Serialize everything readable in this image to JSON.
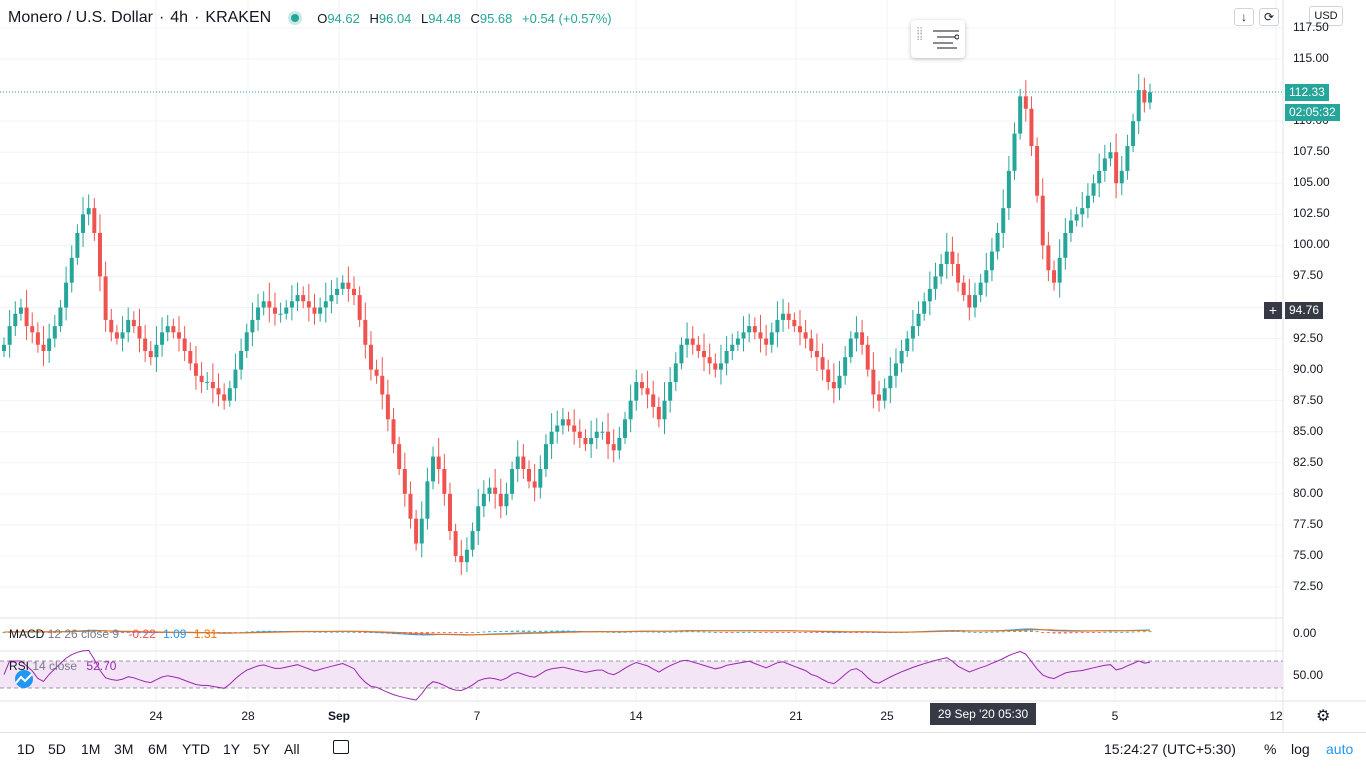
{
  "legend": {
    "symbol": "Monero / U.S. Dollar",
    "interval": "4h",
    "exchange": "KRAKEN",
    "o_label": "O",
    "o": "94.62",
    "h_label": "H",
    "h": "96.04",
    "l_label": "L",
    "l": "94.48",
    "c_label": "C",
    "c": "95.68",
    "change": "+0.54 (+0.57%)",
    "up_color": "#26a69a",
    "down_color": "#ef5350"
  },
  "toolbar": {
    "down_arrow_icon": "down-arrow-icon",
    "fullscreen_icon": "fullscreen-icon",
    "currency": "USD",
    "settings_icon": "gear-icon"
  },
  "price_axis": {
    "labels": [
      "117.50",
      "115.00",
      "110.00",
      "107.50",
      "105.00",
      "102.50",
      "100.00",
      "97.50",
      "95.00",
      "92.50",
      "90.00",
      "87.50",
      "85.00",
      "82.50",
      "80.00",
      "77.50",
      "75.00",
      "72.50"
    ],
    "last_price": "112.33",
    "countdown": "02:05:32",
    "crosshair_price": "94.76",
    "last_price_color": "#26a69a"
  },
  "time_axis": {
    "labels": [
      "24",
      "28",
      "Sep",
      "7",
      "14",
      "21",
      "25",
      "5",
      "12"
    ],
    "crosshair_date": "29 Sep '20  05:30"
  },
  "macd": {
    "name": "MACD",
    "params": "12 26 close 9",
    "v1": "-0.22",
    "v2": "1.09",
    "v3": "1.31",
    "axis_label": "0.00",
    "macd_color": "#2196f3",
    "signal_color": "#ff6d00"
  },
  "rsi": {
    "name": "RSI",
    "params": "14 close",
    "value": "52.70",
    "axis_label": "50.00",
    "line_color": "#9c27b0",
    "band_color": "#f3e5f5"
  },
  "bottom": {
    "ranges": [
      "1D",
      "5D",
      "1M",
      "3M",
      "6M",
      "YTD",
      "1Y",
      "5Y",
      "All"
    ],
    "compare_icon": "calendar-range-icon",
    "clock": "15:24:27 (UTC+5:30)",
    "percent": "%",
    "log": "log",
    "auto": "auto"
  },
  "chart_data": {
    "type": "candlestick",
    "title": "Monero / U.S. Dollar · 4h · KRAKEN",
    "ylim": [
      70,
      118
    ],
    "x_labels": [
      "24",
      "28",
      "Sep",
      "7",
      "14",
      "21",
      "25",
      "5",
      "12"
    ],
    "closes": [
      92,
      93.5,
      94.5,
      95,
      93.5,
      93,
      92,
      91.5,
      92.5,
      93.5,
      95,
      97,
      99,
      101,
      102.5,
      103,
      101,
      97.5,
      94,
      93,
      92.5,
      93,
      94,
      93.5,
      92.5,
      91.5,
      91,
      92,
      93,
      93.5,
      93,
      92.5,
      91.5,
      90.5,
      89.5,
      89,
      89,
      88.5,
      88,
      87.5,
      88.5,
      90,
      91.5,
      93,
      94,
      95,
      95.5,
      95,
      94.5,
      94.5,
      95,
      95.5,
      96,
      95.5,
      95,
      94.5,
      95,
      95.5,
      96,
      96.5,
      97,
      96.5,
      96,
      94,
      92,
      90,
      89.5,
      88,
      86,
      84,
      82,
      80,
      78,
      76,
      78,
      81,
      83,
      82,
      80,
      77,
      75,
      74.5,
      75.5,
      77,
      79,
      80,
      80.5,
      80,
      79,
      80,
      82,
      83,
      82,
      81,
      80.5,
      82,
      84,
      85,
      85.5,
      86,
      85.5,
      85,
      84.5,
      84,
      84.5,
      85,
      85,
      84,
      83.5,
      84.5,
      86,
      87.5,
      89,
      88.5,
      88,
      87,
      86,
      87.5,
      89,
      90.5,
      92,
      92.5,
      92,
      91.5,
      91,
      90.5,
      90,
      90.5,
      91.5,
      92,
      92.5,
      93,
      93.5,
      93,
      92.5,
      92,
      93,
      94,
      94.5,
      94,
      93.5,
      93,
      92.5,
      91.5,
      91,
      90,
      89,
      88.5,
      89.5,
      91,
      92.5,
      93,
      92,
      90,
      88,
      87.5,
      88.5,
      89.5,
      90.5,
      91.5,
      92.5,
      93.5,
      94.5,
      95.5,
      96.5,
      97.5,
      98.5,
      99.5,
      98.5,
      97,
      96,
      95,
      96,
      97,
      98,
      99.5,
      101,
      103,
      106,
      109,
      112,
      111,
      108,
      104,
      100,
      98,
      97,
      99,
      101,
      102,
      102.5,
      103,
      104,
      105,
      106,
      107,
      107.5,
      105,
      106,
      108,
      110,
      112.5,
      111.5,
      112.33
    ],
    "macd_summary": {
      "macd": -0.22,
      "signal": 1.09,
      "histogram": 1.31
    },
    "rsi_summary": {
      "rsi": 52.7,
      "upper_band": 70,
      "lower_band": 30
    }
  }
}
